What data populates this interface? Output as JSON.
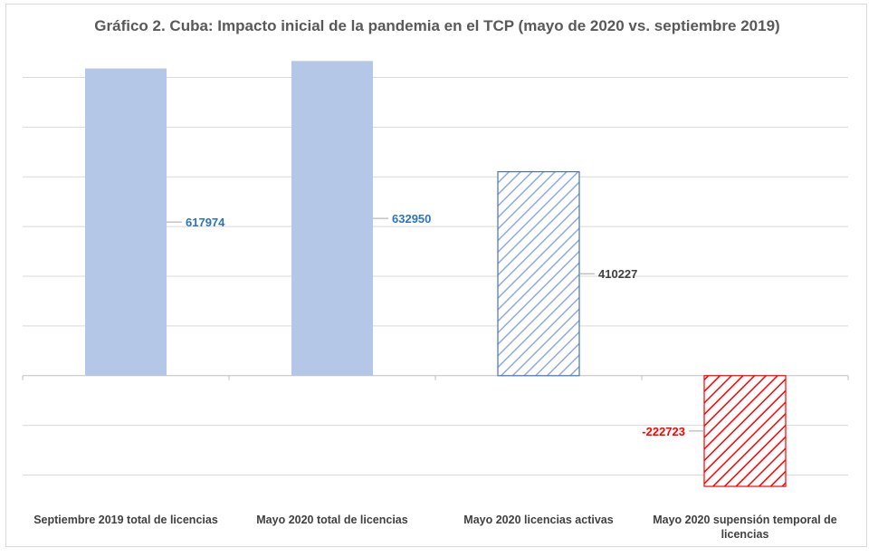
{
  "chart_data": {
    "type": "bar",
    "title": "Gráfico 2. Cuba: Impacto inicial de la pandemia en el TCP (mayo de 2020 vs. septiembre 2019)",
    "categories": [
      [
        "Septiembre 2019 total de licencias"
      ],
      [
        "Mayo  2020 total de licencias"
      ],
      [
        "Mayo 2020 licencias activas"
      ],
      [
        "Mayo 2020 supensión temporal de",
        "licencias"
      ]
    ],
    "values": [
      617974,
      632950,
      410227,
      -222723
    ],
    "value_labels": [
      "617974",
      "632950",
      "410227",
      "-222723"
    ],
    "bar_styles": [
      "solid",
      "solid",
      "hatched",
      "hatched"
    ],
    "bar_colors": [
      "#b4c7e7",
      "#b4c7e7",
      "#4472c4",
      "#ff0000"
    ],
    "label_colors": [
      "#2e75b6",
      "#2e75b6",
      "#404040",
      "#ff0000"
    ],
    "ylim": [
      -250000,
      650000
    ],
    "gridlines": true,
    "legend": "none"
  }
}
